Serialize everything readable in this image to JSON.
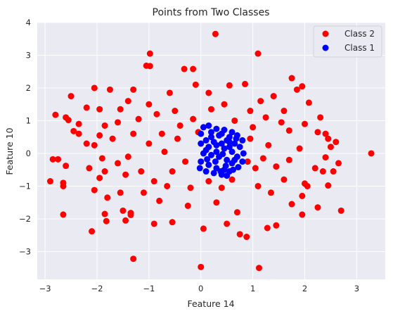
{
  "chart_data": {
    "type": "scatter",
    "title": "Points from Two Classes",
    "xlabel": "Feature 14",
    "ylabel": "Feature 10",
    "xlim": [
      -3.15,
      3.55
    ],
    "ylim": [
      -3.85,
      4.0
    ],
    "xticks": [
      -3,
      -2,
      -1,
      0,
      1,
      2,
      3
    ],
    "yticks": [
      -3,
      -2,
      -1,
      0,
      1,
      2,
      3,
      4
    ],
    "grid": true,
    "background": "#eaeaf2",
    "legend": {
      "placement": "top-right"
    },
    "series": [
      {
        "name": "Class 2",
        "color": "#ff0000",
        "points": [
          [
            0.28,
            3.65
          ],
          [
            -0.98,
            3.05
          ],
          [
            1.1,
            3.05
          ],
          [
            -1.05,
            2.68
          ],
          [
            -0.98,
            2.67
          ],
          [
            -0.32,
            2.58
          ],
          [
            -0.15,
            2.58
          ],
          [
            1.75,
            2.3
          ],
          [
            1.95,
            2.05
          ],
          [
            1.85,
            1.95
          ],
          [
            -2.05,
            2.0
          ],
          [
            -1.75,
            1.95
          ],
          [
            -2.5,
            1.75
          ],
          [
            -1.3,
            1.95
          ],
          [
            0.55,
            2.08
          ],
          [
            0.85,
            2.12
          ],
          [
            2.08,
            1.55
          ],
          [
            -2.2,
            1.4
          ],
          [
            -1.95,
            1.35
          ],
          [
            -1.55,
            1.35
          ],
          [
            -1.4,
            1.6
          ],
          [
            -0.6,
            1.85
          ],
          [
            -0.1,
            2.1
          ],
          [
            0.15,
            1.85
          ],
          [
            1.15,
            1.6
          ],
          [
            1.4,
            1.75
          ],
          [
            1.6,
            1.3
          ],
          [
            -2.8,
            1.18
          ],
          [
            -2.6,
            1.1
          ],
          [
            -2.55,
            1.02
          ],
          [
            -2.35,
            0.9
          ],
          [
            -1.85,
            0.85
          ],
          [
            2.3,
            1.1
          ],
          [
            2.0,
            0.9
          ],
          [
            2.25,
            0.65
          ],
          [
            -2.45,
            0.68
          ],
          [
            -2.35,
            0.6
          ],
          [
            -1.95,
            0.55
          ],
          [
            2.4,
            0.6
          ],
          [
            2.45,
            0.45
          ],
          [
            -2.2,
            0.3
          ],
          [
            -2.05,
            0.25
          ],
          [
            2.6,
            0.35
          ],
          [
            3.28,
            0.0
          ],
          [
            2.5,
            0.2
          ],
          [
            -2.85,
            -0.18
          ],
          [
            -2.75,
            -0.18
          ],
          [
            -2.6,
            -0.38
          ],
          [
            2.4,
            -0.12
          ],
          [
            2.65,
            -0.3
          ],
          [
            -2.15,
            -0.45
          ],
          [
            -1.85,
            -0.55
          ],
          [
            2.2,
            -0.45
          ],
          [
            2.35,
            -0.55
          ],
          [
            2.55,
            -0.55
          ],
          [
            -2.9,
            -0.85
          ],
          [
            -2.65,
            -0.9
          ],
          [
            -2.65,
            -1.0
          ],
          [
            -2.05,
            -1.12
          ],
          [
            -1.95,
            -0.75
          ],
          [
            2.45,
            -0.98
          ],
          [
            2.0,
            -0.92
          ],
          [
            2.05,
            -1.0
          ],
          [
            -1.8,
            -1.35
          ],
          [
            -1.55,
            -1.2
          ],
          [
            1.95,
            -1.3
          ],
          [
            1.75,
            -1.55
          ],
          [
            2.25,
            -1.65
          ],
          [
            2.7,
            -1.75
          ],
          [
            -2.65,
            -1.87
          ],
          [
            -1.85,
            -1.85
          ],
          [
            -1.82,
            -2.07
          ],
          [
            -1.5,
            -1.75
          ],
          [
            -1.35,
            -1.82
          ],
          [
            -1.35,
            -1.88
          ],
          [
            -1.45,
            -2.05
          ],
          [
            1.95,
            -1.87
          ],
          [
            -2.1,
            -2.38
          ],
          [
            -0.9,
            -2.15
          ],
          [
            -0.55,
            -2.1
          ],
          [
            0.05,
            -2.3
          ],
          [
            0.5,
            -2.15
          ],
          [
            0.75,
            -2.47
          ],
          [
            0.88,
            -2.55
          ],
          [
            1.28,
            -2.28
          ],
          [
            1.45,
            -2.2
          ],
          [
            -1.3,
            -3.22
          ],
          [
            0.0,
            -3.47
          ],
          [
            1.12,
            -3.5
          ],
          [
            0.3,
            -1.5
          ],
          [
            -0.25,
            -1.6
          ],
          [
            0.7,
            -1.8
          ],
          [
            1.35,
            -1.2
          ],
          [
            1.1,
            -1.0
          ],
          [
            -1.1,
            -1.2
          ],
          [
            -0.8,
            -1.45
          ],
          [
            0.95,
            1.3
          ],
          [
            -0.85,
            1.2
          ],
          [
            -1.2,
            1.05
          ],
          [
            -1.6,
            0.95
          ],
          [
            1.55,
            0.95
          ],
          [
            1.7,
            0.7
          ],
          [
            -1.6,
            -0.3
          ],
          [
            -1.4,
            -0.1
          ],
          [
            1.45,
            -0.4
          ],
          [
            1.7,
            -0.2
          ],
          [
            -0.45,
            0.45
          ],
          [
            -0.3,
            -0.25
          ],
          [
            0.95,
            0.45
          ],
          [
            1.05,
            -0.45
          ],
          [
            -0.7,
            0.05
          ],
          [
            -0.55,
            -0.55
          ],
          [
            0.65,
            1.0
          ],
          [
            0.4,
            -1.05
          ],
          [
            -0.15,
            1.05
          ],
          [
            -1.3,
            0.6
          ],
          [
            -1.0,
            0.3
          ],
          [
            -1.15,
            -0.55
          ],
          [
            -0.9,
            -0.85
          ],
          [
            1.3,
            0.25
          ],
          [
            1.2,
            -0.15
          ],
          [
            0.6,
            -0.8
          ],
          [
            -0.4,
            0.85
          ],
          [
            -0.75,
            0.6
          ],
          [
            0.2,
            1.35
          ],
          [
            -0.2,
            -1.05
          ],
          [
            1.0,
            0.8
          ],
          [
            1.25,
            1.1
          ],
          [
            -1.7,
            0.45
          ],
          [
            -1.45,
            -0.65
          ],
          [
            0.15,
            -0.85
          ],
          [
            -0.65,
            -1.0
          ],
          [
            0.9,
            -0.25
          ],
          [
            -0.5,
            1.3
          ],
          [
            0.45,
            1.5
          ],
          [
            -1.0,
            1.5
          ],
          [
            1.6,
            -0.8
          ],
          [
            -0.05,
            0.65
          ],
          [
            1.9,
            0.15
          ],
          [
            -1.9,
            -0.15
          ]
        ]
      },
      {
        "name": "Class 1",
        "color": "#0000ff",
        "points": [
          [
            0.05,
            0.8
          ],
          [
            0.15,
            0.85
          ],
          [
            0.3,
            0.75
          ],
          [
            0.45,
            0.72
          ],
          [
            0.6,
            0.65
          ],
          [
            0.7,
            0.55
          ],
          [
            0.8,
            0.4
          ],
          [
            0.0,
            0.6
          ],
          [
            0.2,
            0.5
          ],
          [
            0.35,
            0.55
          ],
          [
            0.5,
            0.4
          ],
          [
            0.65,
            0.3
          ],
          [
            0.75,
            0.2
          ],
          [
            0.82,
            0.0
          ],
          [
            0.0,
            0.3
          ],
          [
            0.15,
            0.2
          ],
          [
            0.3,
            0.25
          ],
          [
            0.45,
            0.15
          ],
          [
            0.6,
            0.05
          ],
          [
            0.7,
            -0.1
          ],
          [
            0.8,
            -0.25
          ],
          [
            0.05,
            0.0
          ],
          [
            0.2,
            -0.05
          ],
          [
            0.35,
            -0.1
          ],
          [
            0.5,
            -0.2
          ],
          [
            0.6,
            -0.3
          ],
          [
            0.72,
            -0.42
          ],
          [
            0.0,
            -0.25
          ],
          [
            0.15,
            -0.35
          ],
          [
            0.3,
            -0.45
          ],
          [
            0.45,
            -0.5
          ],
          [
            0.55,
            -0.55
          ],
          [
            -0.02,
            -0.45
          ],
          [
            0.1,
            -0.55
          ],
          [
            0.25,
            -0.6
          ],
          [
            0.4,
            -0.65
          ],
          [
            0.5,
            -0.68
          ],
          [
            0.62,
            -0.5
          ],
          [
            0.2,
            0.65
          ],
          [
            0.4,
            0.6
          ],
          [
            0.55,
            0.5
          ],
          [
            0.1,
            0.4
          ],
          [
            0.25,
            0.35
          ],
          [
            0.4,
            0.3
          ],
          [
            0.55,
            0.2
          ],
          [
            0.1,
            0.1
          ],
          [
            0.3,
            0.05
          ],
          [
            0.42,
            -0.02
          ],
          [
            0.55,
            0.35
          ],
          [
            0.68,
            0.45
          ],
          [
            0.28,
            -0.25
          ],
          [
            0.48,
            -0.38
          ],
          [
            0.12,
            -0.18
          ],
          [
            0.38,
            -0.55
          ],
          [
            0.65,
            -0.2
          ]
        ]
      }
    ]
  }
}
